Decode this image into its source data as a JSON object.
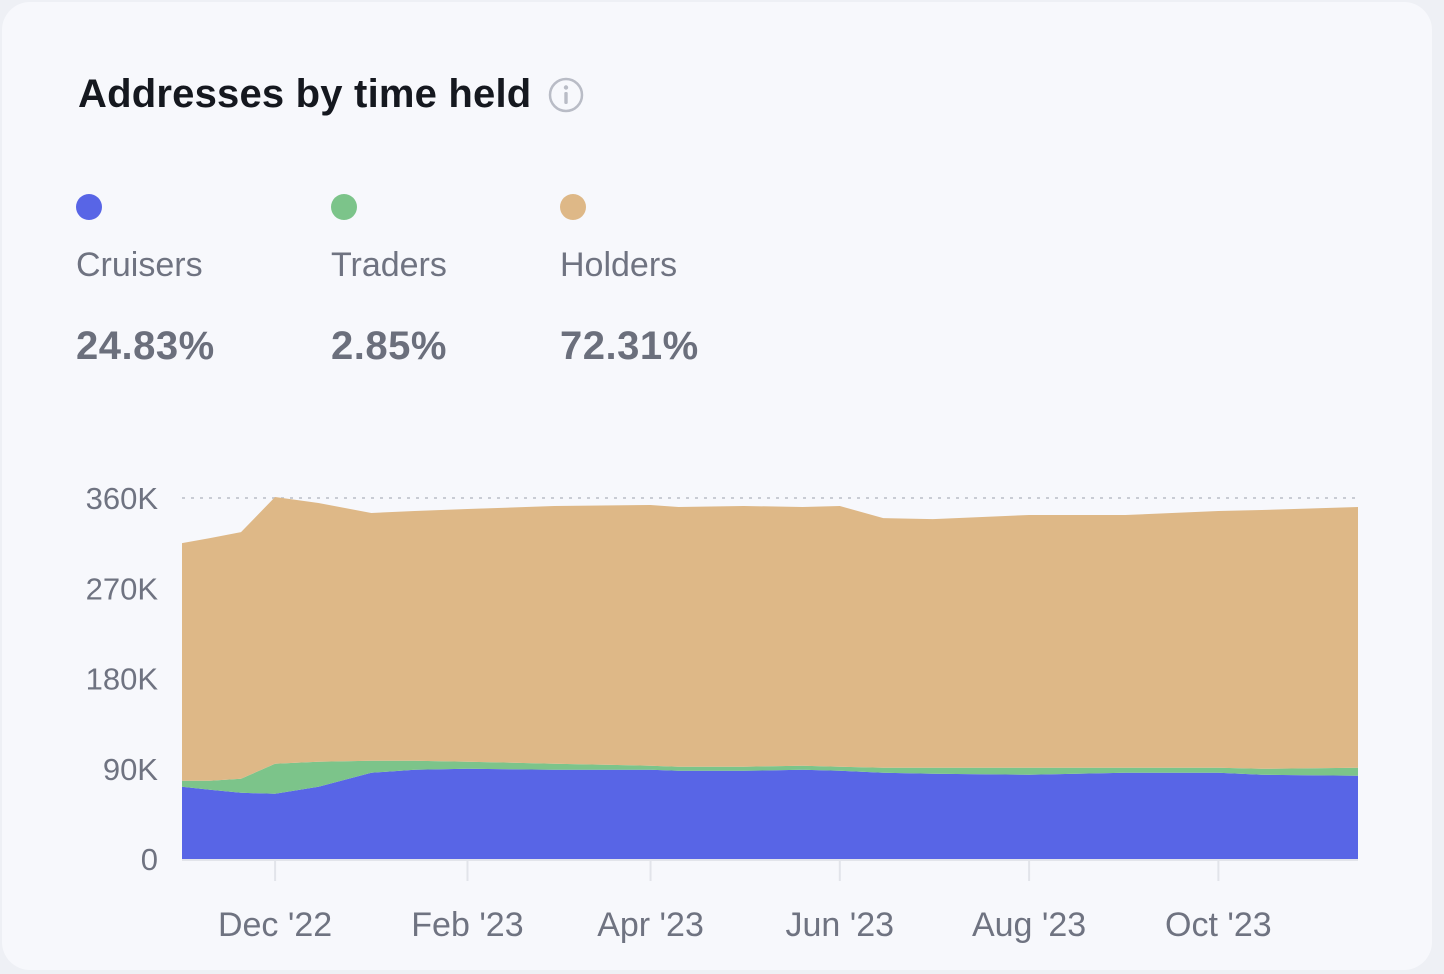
{
  "card": {
    "title": "Addresses by time held",
    "info_icon": "info-icon"
  },
  "legend": [
    {
      "label": "Cruisers",
      "value": "24.83%",
      "color": "#5865e6"
    },
    {
      "label": "Traders",
      "value": "2.85%",
      "color": "#7cc48a"
    },
    {
      "label": "Holders",
      "value": "72.31%",
      "color": "#deb887"
    }
  ],
  "chart_data": {
    "type": "area",
    "stacked": true,
    "title": "Addresses by time held",
    "xlabel": "",
    "ylabel": "",
    "ylim": [
      0,
      360000
    ],
    "y_ticks": [
      0,
      90000,
      180000,
      270000,
      360000
    ],
    "y_tick_labels": [
      "0",
      "90K",
      "180K",
      "270K",
      "360K"
    ],
    "x_range": [
      "2022-11-01",
      "2023-11-15"
    ],
    "x_ticks": [
      "2022-12-01",
      "2023-02-01",
      "2023-04-01",
      "2023-06-01",
      "2023-08-01",
      "2023-10-01"
    ],
    "x_tick_labels": [
      "Dec '22",
      "Feb '23",
      "Apr '23",
      "Jun '23",
      "Aug '23",
      "Oct '23"
    ],
    "grid": "dotted line at 360K",
    "legend": "top-left",
    "x": [
      "2022-11-01",
      "2022-11-10",
      "2022-11-20",
      "2022-12-01",
      "2022-12-15",
      "2023-01-01",
      "2023-01-15",
      "2023-02-01",
      "2023-03-01",
      "2023-04-01",
      "2023-04-10",
      "2023-05-01",
      "2023-05-20",
      "2023-06-01",
      "2023-06-15",
      "2023-07-01",
      "2023-08-01",
      "2023-09-01",
      "2023-10-01",
      "2023-10-15",
      "2023-11-15"
    ],
    "series": [
      {
        "name": "Cruisers",
        "color": "#5865e6",
        "values": [
          72000,
          69000,
          66000,
          65000,
          72000,
          86000,
          89000,
          90000,
          89000,
          89000,
          88000,
          88000,
          89000,
          88000,
          86000,
          85000,
          84000,
          86000,
          86000,
          84000,
          83000
        ]
      },
      {
        "name": "Traders",
        "color": "#7cc48a",
        "values": [
          6000,
          9000,
          14000,
          30000,
          25000,
          12000,
          9000,
          7000,
          6000,
          4000,
          4000,
          4000,
          4000,
          4000,
          5000,
          6000,
          7000,
          5000,
          5000,
          6000,
          8000
        ]
      },
      {
        "name": "Holders",
        "color": "#deb887",
        "values": [
          237000,
          242000,
          246000,
          266000,
          258000,
          247000,
          249000,
          252000,
          257000,
          260000,
          259000,
          260000,
          258000,
          260000,
          249000,
          248000,
          252000,
          252000,
          256000,
          258000,
          260000
        ]
      }
    ]
  }
}
